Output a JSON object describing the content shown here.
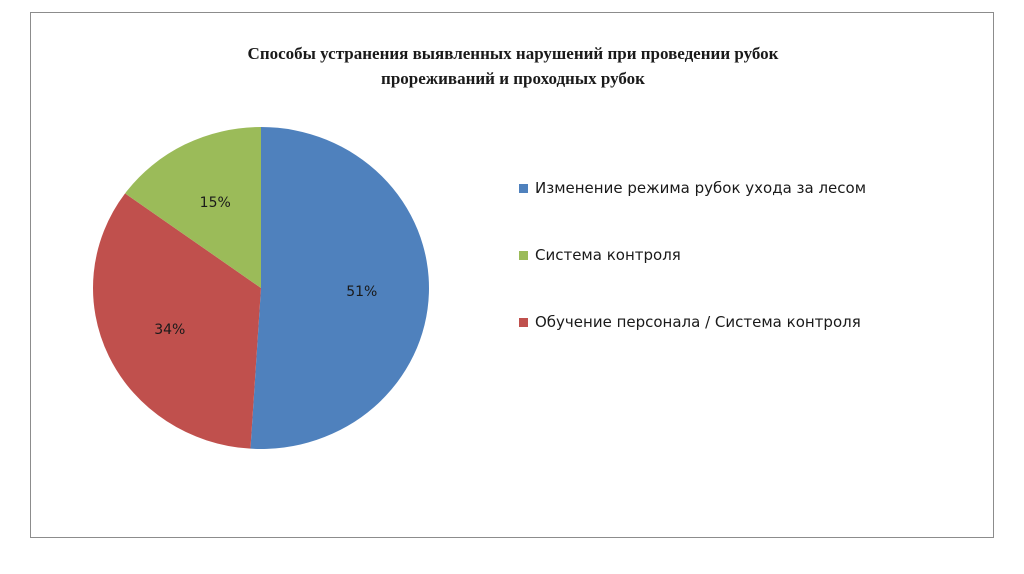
{
  "chart_data": {
    "type": "pie",
    "title": "Способы устранения выявленных нарушений при проведении рубок прореживаний и проходных рубок",
    "title_lines": [
      "Способы устранения выявленных нарушений при проведении рубок",
      "прореживаний и проходных рубок"
    ],
    "legend_position": "right",
    "slices": [
      {
        "label": "Изменение режима рубок ухода за лесом",
        "value": 51,
        "display": "51%",
        "color": "#4f81bd"
      },
      {
        "label": "Обучение персонала / Система контроля",
        "value": 34,
        "display": "34%",
        "color": "#c0504d"
      },
      {
        "label": "Система контроля",
        "value": 15,
        "display": "15%",
        "color": "#9bbb59"
      }
    ],
    "legend": [
      {
        "label": "Изменение режима рубок ухода за лесом",
        "color": "#4f81bd"
      },
      {
        "label": "Система контроля",
        "color": "#9bbb59"
      },
      {
        "label": "Обучение персонала / Система контроля",
        "color": "#c0504d"
      }
    ]
  }
}
